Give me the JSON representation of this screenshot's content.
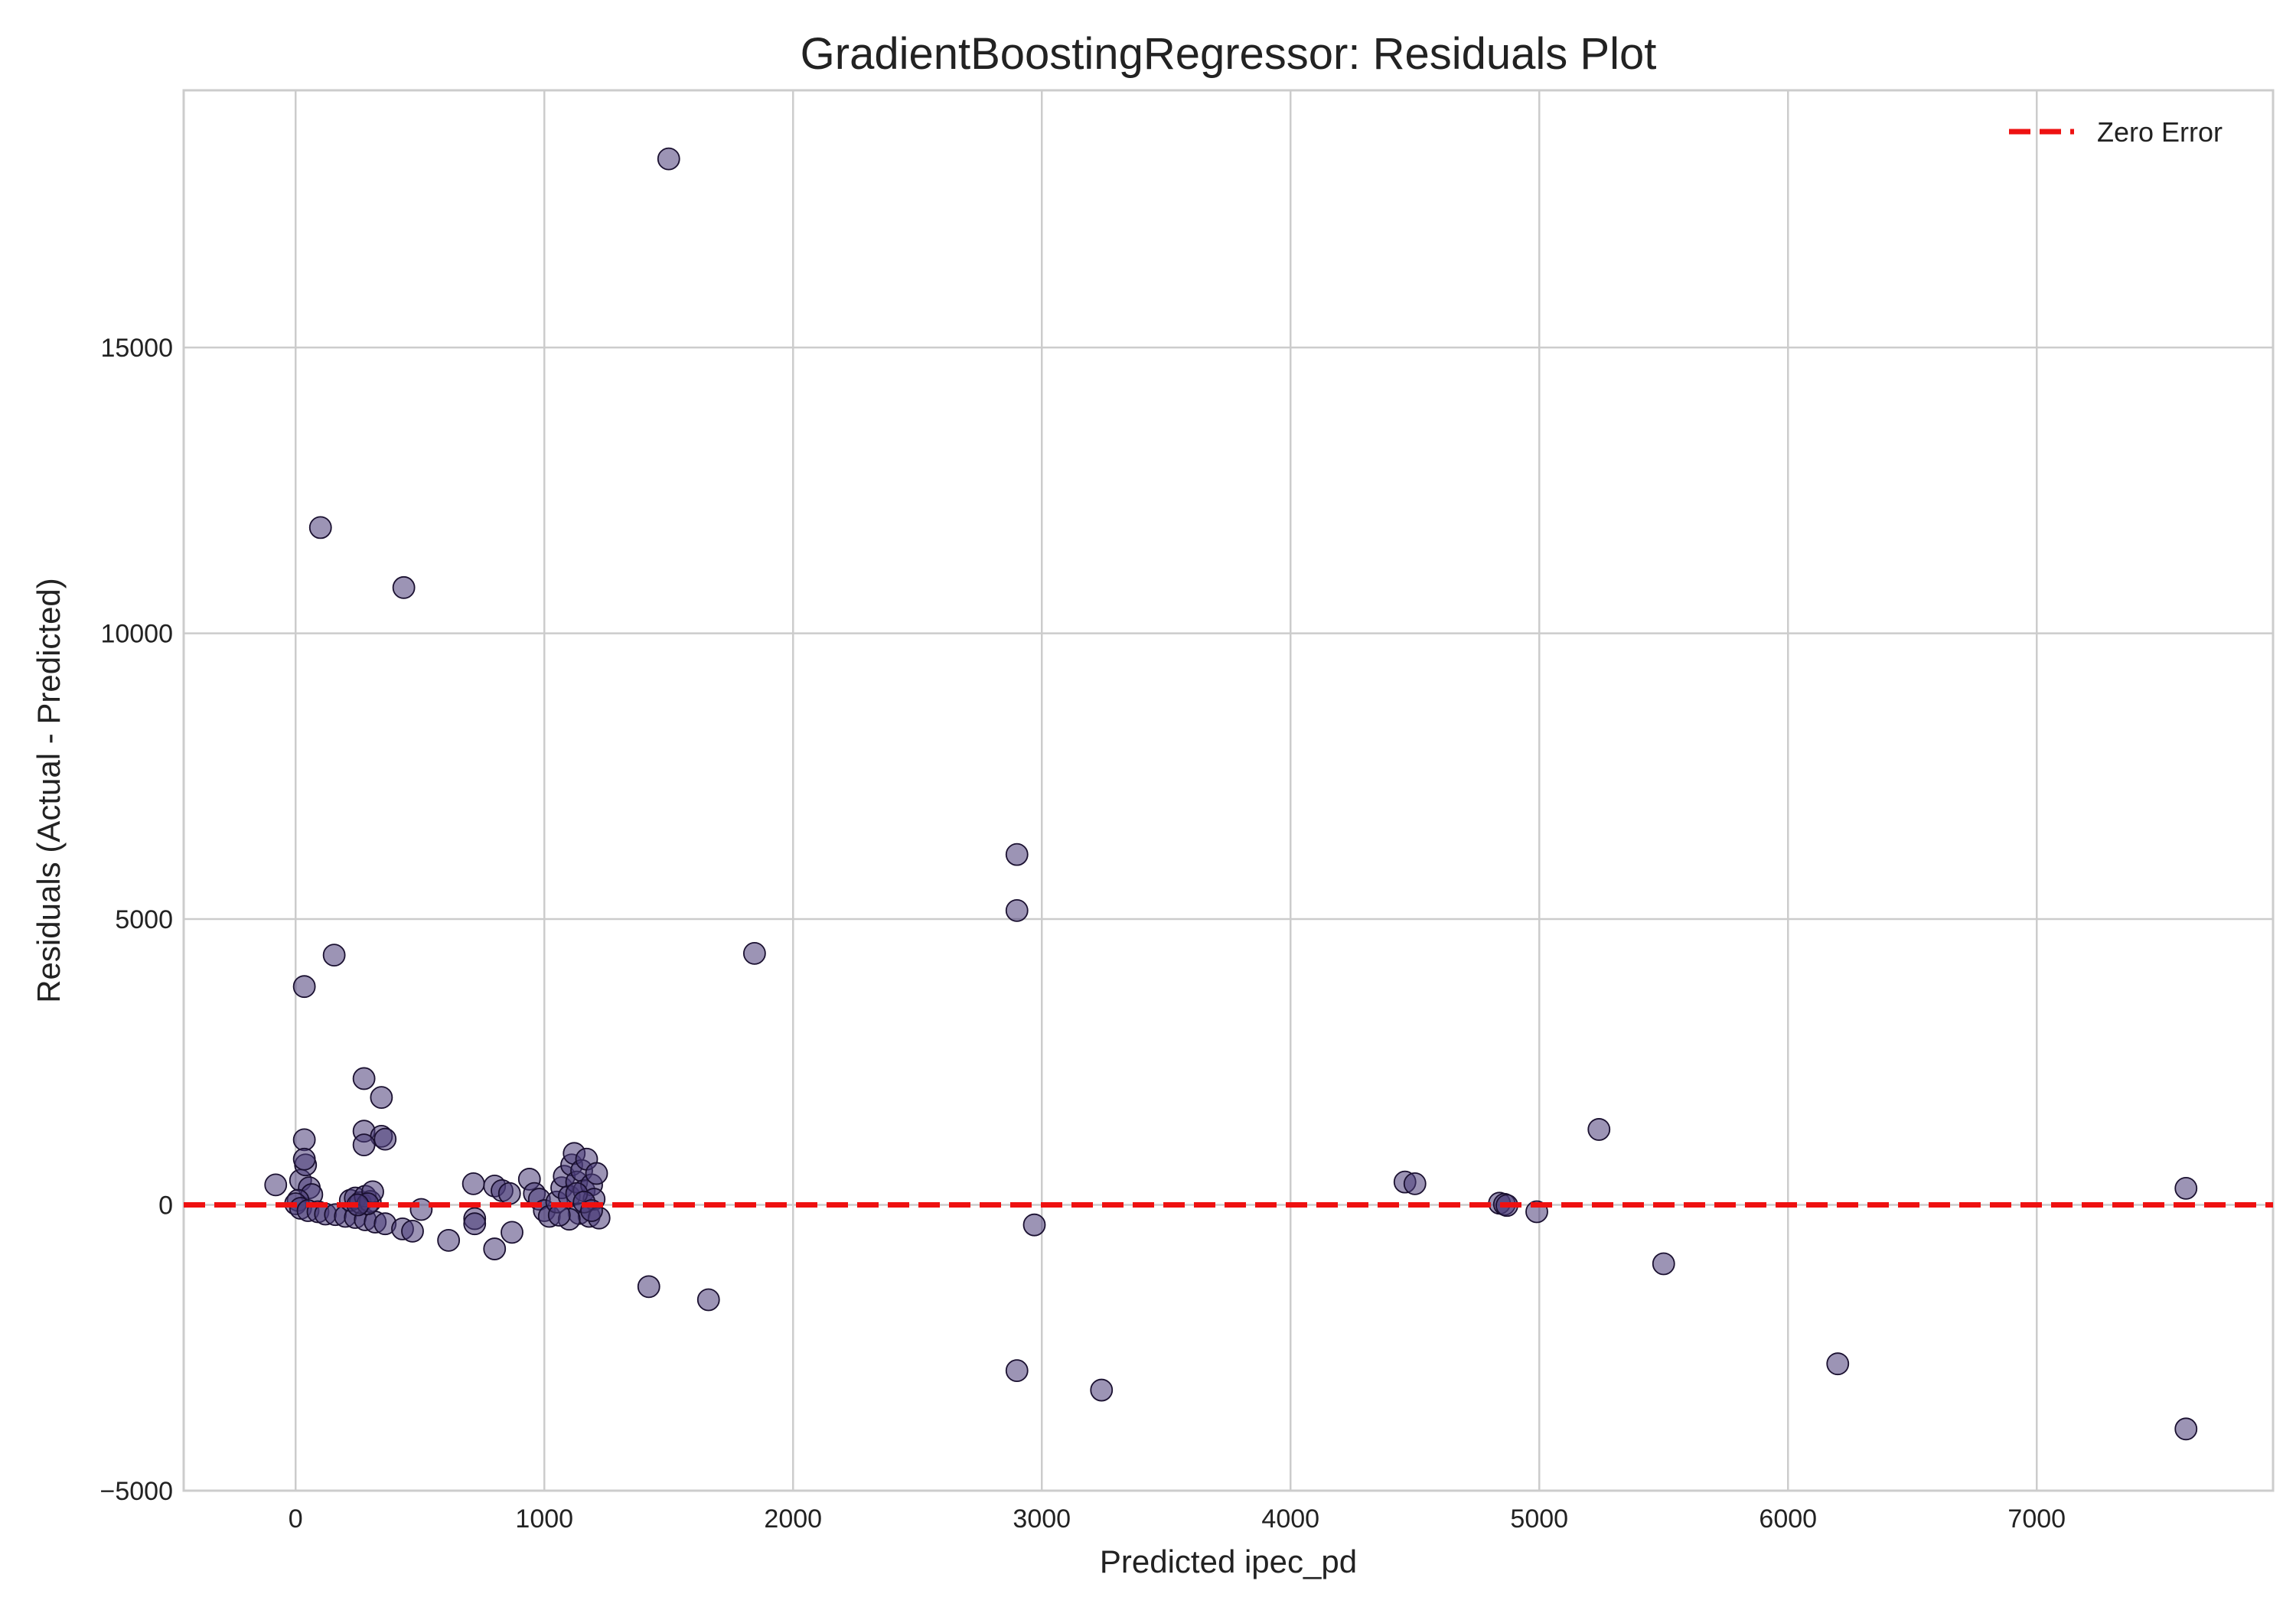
{
  "chart_data": {
    "type": "scatter",
    "title": "GradientBoostingRegressor: Residuals Plot",
    "xlabel": "Predicted ipec_pd",
    "ylabel": "Residuals (Actual - Predicted)",
    "xlim": [
      -450,
      7950
    ],
    "ylim": [
      -5000,
      19500
    ],
    "xticks": [
      0,
      1000,
      2000,
      3000,
      4000,
      5000,
      6000,
      7000
    ],
    "xtick_labels": [
      "0",
      "1000",
      "2000",
      "3000",
      "4000",
      "5000",
      "6000",
      "7000"
    ],
    "yticks": [
      -5000,
      0,
      5000,
      10000,
      15000
    ],
    "ytick_labels": [
      "−5000",
      "0",
      "5000",
      "10000",
      "15000"
    ],
    "grid": true,
    "legend": {
      "position": "top-right",
      "entries": [
        "Zero Error"
      ]
    },
    "reference_line": {
      "y": 0,
      "style": "dashed",
      "color": "#ee1111"
    },
    "point_color": "#4a3d78",
    "point_opacity": 0.55,
    "series": [
      {
        "points": [
          [
            1500,
            18300
          ],
          [
            100,
            11850
          ],
          [
            435,
            10800
          ],
          [
            2900,
            6130
          ],
          [
            2900,
            5150
          ],
          [
            1845,
            4400
          ],
          [
            155,
            4370
          ],
          [
            35,
            3820
          ],
          [
            275,
            2210
          ],
          [
            345,
            1880
          ],
          [
            275,
            1290
          ],
          [
            345,
            1200
          ],
          [
            360,
            1150
          ],
          [
            35,
            1140
          ],
          [
            275,
            1050
          ],
          [
            -80,
            350
          ],
          [
            20,
            430
          ],
          [
            40,
            700
          ],
          [
            35,
            800
          ],
          [
            55,
            300
          ],
          [
            65,
            180
          ],
          [
            10,
            80
          ],
          [
            0,
            20
          ],
          [
            20,
            -60
          ],
          [
            50,
            -100
          ],
          [
            90,
            -120
          ],
          [
            120,
            -160
          ],
          [
            160,
            -170
          ],
          [
            200,
            -200
          ],
          [
            240,
            -220
          ],
          [
            280,
            -260
          ],
          [
            320,
            -300
          ],
          [
            360,
            -330
          ],
          [
            430,
            -420
          ],
          [
            470,
            -460
          ],
          [
            505,
            -80
          ],
          [
            615,
            -620
          ],
          [
            220,
            80
          ],
          [
            240,
            120
          ],
          [
            260,
            40
          ],
          [
            280,
            150
          ],
          [
            300,
            60
          ],
          [
            310,
            230
          ],
          [
            290,
            20
          ],
          [
            250,
            0
          ],
          [
            715,
            370
          ],
          [
            720,
            -240
          ],
          [
            720,
            -330
          ],
          [
            800,
            330
          ],
          [
            830,
            250
          ],
          [
            860,
            200
          ],
          [
            870,
            -480
          ],
          [
            800,
            -770
          ],
          [
            940,
            450
          ],
          [
            960,
            200
          ],
          [
            980,
            100
          ],
          [
            1000,
            -100
          ],
          [
            1020,
            -200
          ],
          [
            1050,
            50
          ],
          [
            1070,
            300
          ],
          [
            1080,
            500
          ],
          [
            1100,
            150
          ],
          [
            1110,
            700
          ],
          [
            1120,
            900
          ],
          [
            1130,
            400
          ],
          [
            1140,
            -150
          ],
          [
            1150,
            600
          ],
          [
            1160,
            250
          ],
          [
            1170,
            800
          ],
          [
            1180,
            -200
          ],
          [
            1190,
            350
          ],
          [
            1200,
            100
          ],
          [
            1210,
            550
          ],
          [
            1220,
            -230
          ],
          [
            1100,
            -250
          ],
          [
            1060,
            -180
          ],
          [
            1130,
            200
          ],
          [
            1160,
            50
          ],
          [
            1190,
            -100
          ],
          [
            1420,
            -1430
          ],
          [
            1660,
            -1660
          ],
          [
            2900,
            -2900
          ],
          [
            2970,
            -350
          ],
          [
            3240,
            -3240
          ],
          [
            4460,
            400
          ],
          [
            4500,
            370
          ],
          [
            4840,
            30
          ],
          [
            4860,
            10
          ],
          [
            4870,
            -10
          ],
          [
            4990,
            -120
          ],
          [
            5240,
            1320
          ],
          [
            5500,
            -1030
          ],
          [
            6200,
            -2780
          ],
          [
            7600,
            290
          ],
          [
            7600,
            -3920
          ]
        ]
      }
    ]
  }
}
